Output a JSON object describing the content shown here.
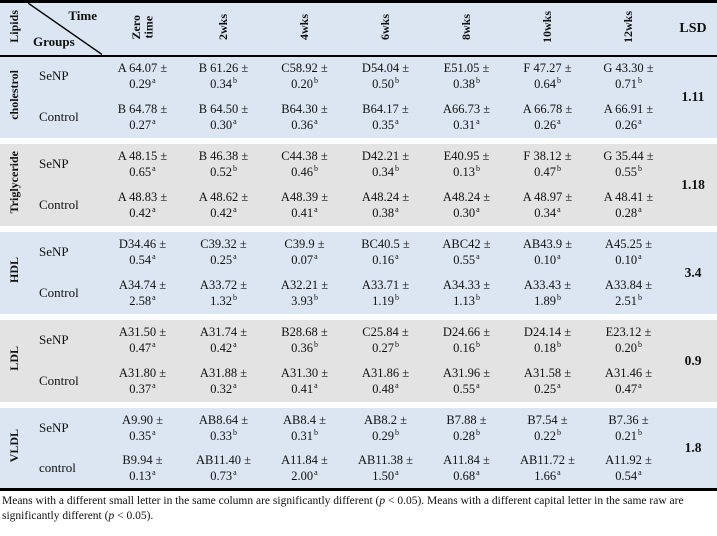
{
  "table": {
    "corner": {
      "lipids": "Lipids",
      "time": "Time",
      "groups": "Groups"
    },
    "columns": [
      "Zero\ntime",
      "2wks",
      "4wks",
      "6wks",
      "8wks",
      "10wks",
      "12wks"
    ],
    "lsd_label": "LSD",
    "groups": [
      {
        "lipid": "cholestrol",
        "lsd": "1.11",
        "rows": [
          {
            "group": "SeNP",
            "cells": [
              {
                "main": "A 64.07 ±",
                "sub": "0.29",
                "sup": "a"
              },
              {
                "main": "B 61.26 ±",
                "sub": "0.34",
                "sup": "b"
              },
              {
                "main": "C58.92 ±",
                "sub": "0.20",
                "sup": "b"
              },
              {
                "main": "D54.04 ±",
                "sub": "0.50",
                "sup": "b"
              },
              {
                "main": "E51.05 ±",
                "sub": "0.38",
                "sup": "b"
              },
              {
                "main": "F 47.27 ±",
                "sub": "0.64",
                "sup": "b"
              },
              {
                "main": "G 43.30 ±",
                "sub": "0.71",
                "sup": "b"
              }
            ]
          },
          {
            "group": "Control",
            "cells": [
              {
                "main": "B 64.78 ±",
                "sub": "0.27",
                "sup": "a"
              },
              {
                "main": "B 64.50 ±",
                "sub": "0.30",
                "sup": "a"
              },
              {
                "main": "B64.30 ±",
                "sub": "0.36",
                "sup": "a"
              },
              {
                "main": "B64.17 ±",
                "sub": "0.35",
                "sup": "a"
              },
              {
                "main": "A66.73 ±",
                "sub": "0.31",
                "sup": "a"
              },
              {
                "main": "A 66.78 ±",
                "sub": "0.26",
                "sup": "a"
              },
              {
                "main": "A 66.91 ±",
                "sub": "0.26",
                "sup": "a"
              }
            ]
          }
        ]
      },
      {
        "lipid": "Triglyceride",
        "lsd": "1.18",
        "rows": [
          {
            "group": "SeNP",
            "cells": [
              {
                "main": "A 48.15 ±",
                "sub": "0.65",
                "sup": "a"
              },
              {
                "main": "B 46.38 ±",
                "sub": "0.52",
                "sup": "b"
              },
              {
                "main": "C44.38 ±",
                "sub": "0.46",
                "sup": "b"
              },
              {
                "main": "D42.21 ±",
                "sub": "0.34",
                "sup": "b"
              },
              {
                "main": "E40.95 ±",
                "sub": "0.13",
                "sup": "b"
              },
              {
                "main": "F 38.12 ±",
                "sub": "0.47",
                "sup": "b"
              },
              {
                "main": "G 35.44 ±",
                "sub": "0.55",
                "sup": "b"
              }
            ]
          },
          {
            "group": "Control",
            "cells": [
              {
                "main": "A 48.83 ±",
                "sub": "0.42",
                "sup": "a"
              },
              {
                "main": "A 48.62 ±",
                "sub": "0.42",
                "sup": "a"
              },
              {
                "main": "A48.39 ±",
                "sub": "0.41",
                "sup": "a"
              },
              {
                "main": "A48.24 ±",
                "sub": "0.38",
                "sup": "a"
              },
              {
                "main": "A48.24 ±",
                "sub": "0.30",
                "sup": "a"
              },
              {
                "main": "A 48.97 ±",
                "sub": "0.34",
                "sup": "a"
              },
              {
                "main": "A 48.41 ±",
                "sub": "0.28",
                "sup": "a"
              }
            ]
          }
        ]
      },
      {
        "lipid": "HDL",
        "lsd": "3.4",
        "rows": [
          {
            "group": "SeNP",
            "cells": [
              {
                "main": "D34.46 ±",
                "sub": "0.54",
                "sup": "a"
              },
              {
                "main": "C39.32 ±",
                "sub": "0.25",
                "sup": "a"
              },
              {
                "main": "C39.9 ±",
                "sub": "0.07",
                "sup": "a"
              },
              {
                "main": "BC40.5 ±",
                "sub": "0.16",
                "sup": "a"
              },
              {
                "main": "ABC42 ±",
                "sub": "0.55",
                "sup": "a"
              },
              {
                "main": "AB43.9 ±",
                "sub": "0.10",
                "sup": "a"
              },
              {
                "main": "A45.25 ±",
                "sub": "0.10",
                "sup": "a"
              }
            ]
          },
          {
            "group": "Control",
            "cells": [
              {
                "main": "A34.74 ±",
                "sub": "2.58",
                "sup": "a"
              },
              {
                "main": "A33.72 ±",
                "sub": "1.32",
                "sup": "b"
              },
              {
                "main": "A32.21 ±",
                "sub": "3.93",
                "sup": "b"
              },
              {
                "main": "A33.71 ±",
                "sub": "1.19",
                "sup": "b"
              },
              {
                "main": "A34.33 ±",
                "sub": "1.13",
                "sup": "b"
              },
              {
                "main": "A33.43 ±",
                "sub": "1.89",
                "sup": "b"
              },
              {
                "main": "A33.84 ±",
                "sub": "2.51",
                "sup": "b"
              }
            ]
          }
        ]
      },
      {
        "lipid": "LDL",
        "lsd": "0.9",
        "rows": [
          {
            "group": "SeNP",
            "cells": [
              {
                "main": "A31.50 ±",
                "sub": "0.47",
                "sup": "a"
              },
              {
                "main": "A31.74 ±",
                "sub": "0.42",
                "sup": "a"
              },
              {
                "main": "B28.68 ±",
                "sub": "0.36",
                "sup": "b"
              },
              {
                "main": "C25.84 ±",
                "sub": "0.27",
                "sup": "b"
              },
              {
                "main": "D24.66 ±",
                "sub": "0.16",
                "sup": "b"
              },
              {
                "main": "D24.14 ±",
                "sub": "0.18",
                "sup": "b"
              },
              {
                "main": "E23.12 ±",
                "sub": "0.20",
                "sup": "b"
              }
            ]
          },
          {
            "group": "Control",
            "cells": [
              {
                "main": "A31.80 ±",
                "sub": "0.37",
                "sup": "a"
              },
              {
                "main": "A31.88 ±",
                "sub": "0.32",
                "sup": "a"
              },
              {
                "main": "A31.30 ±",
                "sub": "0.41",
                "sup": "a"
              },
              {
                "main": "A31.86 ±",
                "sub": "0.48",
                "sup": "a"
              },
              {
                "main": "A31.96 ±",
                "sub": "0.55",
                "sup": "a"
              },
              {
                "main": "A31.58 ±",
                "sub": "0.25",
                "sup": "a"
              },
              {
                "main": "A31.46 ±",
                "sub": "0.47",
                "sup": "a"
              }
            ]
          }
        ]
      },
      {
        "lipid": "VLDL",
        "lsd": "1.8",
        "rows": [
          {
            "group": "SeNP",
            "cells": [
              {
                "main": "A9.90 ±",
                "sub": "0.35",
                "sup": "a"
              },
              {
                "main": "AB8.64 ±",
                "sub": "0.33",
                "sup": "b"
              },
              {
                "main": "AB8.4 ±",
                "sub": "0.31",
                "sup": "b"
              },
              {
                "main": "AB8.2 ±",
                "sub": "0.29",
                "sup": "b"
              },
              {
                "main": "B7.88 ±",
                "sub": "0.28",
                "sup": "b"
              },
              {
                "main": "B7.54 ±",
                "sub": "0.22",
                "sup": "b"
              },
              {
                "main": "B7.36 ±",
                "sub": "0.21",
                "sup": "b"
              }
            ]
          },
          {
            "group": "control",
            "cells": [
              {
                "main": "B9.94 ±",
                "sub": "0.13",
                "sup": "a"
              },
              {
                "main": "AB11.40 ±",
                "sub": "0.73",
                "sup": "a"
              },
              {
                "main": "A11.84 ±",
                "sub": "2.00",
                "sup": "a"
              },
              {
                "main": "AB11.38 ±",
                "sub": "1.50",
                "sup": "a"
              },
              {
                "main": "A11.84 ±",
                "sub": "0.68",
                "sup": "a"
              },
              {
                "main": "AB11.72 ±",
                "sub": "1.66",
                "sup": "a"
              },
              {
                "main": "A11.92 ±",
                "sub": "0.54",
                "sup": "a"
              }
            ]
          }
        ]
      }
    ]
  },
  "footnote": {
    "parts": [
      "Means with a different small letter in the same column are significantly different (",
      "p",
      " < 0.05). Means with a different capital letter in the same raw are significantly different (",
      "p",
      " < 0.05)."
    ]
  },
  "colors": {
    "header_bg": "#dce6f2",
    "blue_group_bg": "#dce6f2",
    "gray_group_bg": "#e3e3e3",
    "border": "#000000"
  }
}
